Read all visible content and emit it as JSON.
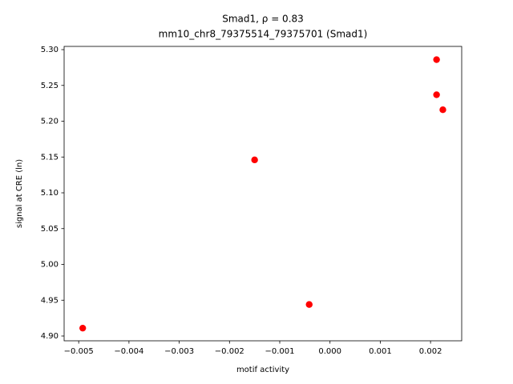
{
  "chart_data": {
    "type": "scatter",
    "title": "Smad1, ρ = 0.83",
    "subtitle": "mm10_chr8_79375514_79375701 (Smad1)",
    "x_label": "motif activity",
    "y_label": "signal at CRE (ln)",
    "color": "#ff0000",
    "x": [
      -0.00492,
      -0.0015,
      -0.000414,
      0.00212,
      0.00212,
      0.002245
    ],
    "values": [
      4.911,
      5.146,
      4.944,
      5.286,
      5.237,
      5.216
    ],
    "xlim": [
      -0.00529,
      0.00262
    ],
    "ylim": [
      4.8933,
      5.3045
    ],
    "xticks": [
      {
        "value": -0.005,
        "label": "−0.005"
      },
      {
        "value": -0.004,
        "label": "−0.004"
      },
      {
        "value": -0.003,
        "label": "−0.003"
      },
      {
        "value": -0.002,
        "label": "−0.002"
      },
      {
        "value": -0.001,
        "label": "−0.001"
      },
      {
        "value": 0,
        "label": "0.000"
      },
      0.001,
      0.002
    ],
    "yticks": [
      {
        "value": 4.9,
        "label": "4.90"
      },
      4.95,
      {
        "value": 5.0,
        "label": "5.00"
      },
      5.05,
      {
        "value": 5.1,
        "label": "5.10"
      },
      5.15,
      {
        "value": 5.2,
        "label": "5.20"
      },
      5.25,
      {
        "value": 5.3,
        "label": "5.30"
      }
    ],
    "grid": false
  }
}
